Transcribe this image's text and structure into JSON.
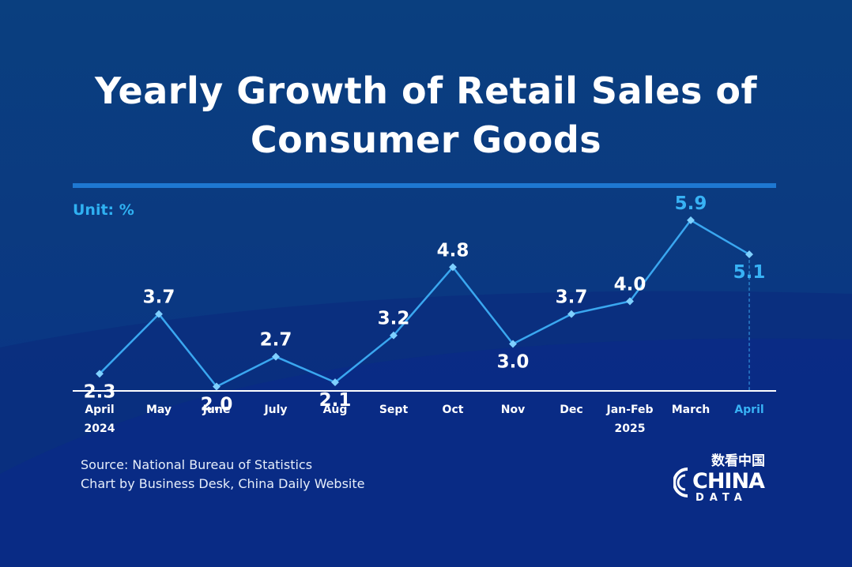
{
  "title_line1": "Yearly Growth of Retail Sales of",
  "title_line2": "Consumer Goods",
  "unit": "Unit: %",
  "source_line1": "Source: National Bureau of Statistics",
  "source_line2": "Chart by Business Desk, China Daily Website",
  "logo": {
    "chinese": "数看中国",
    "word": "CHINA",
    "sub": "DATA"
  },
  "colors": {
    "line": "#3aa7f0",
    "highlight_label": "#38b2f5",
    "label": "#ffffff",
    "axis": "#ffffff",
    "background": "#0a3f7f"
  },
  "chart_data": {
    "type": "line",
    "categories": [
      "April\n2024",
      "May",
      "June",
      "July",
      "Aug",
      "Sept",
      "Oct",
      "Nov",
      "Dec",
      "Jan-Feb\n2025",
      "March",
      "April"
    ],
    "values": [
      2.3,
      3.7,
      2.0,
      2.7,
      2.1,
      3.2,
      4.8,
      3.0,
      3.7,
      4.0,
      5.9,
      5.1
    ],
    "value_labels": [
      "2.3",
      "3.7",
      "2.0",
      "2.7",
      "2.1",
      "3.2",
      "4.8",
      "3.0",
      "3.7",
      "4.0",
      "5.9",
      "5.1"
    ],
    "highlighted": [
      10,
      11
    ],
    "title": "Yearly Growth of Retail Sales of Consumer Goods",
    "ylabel": "Unit: %",
    "grid": false
  }
}
